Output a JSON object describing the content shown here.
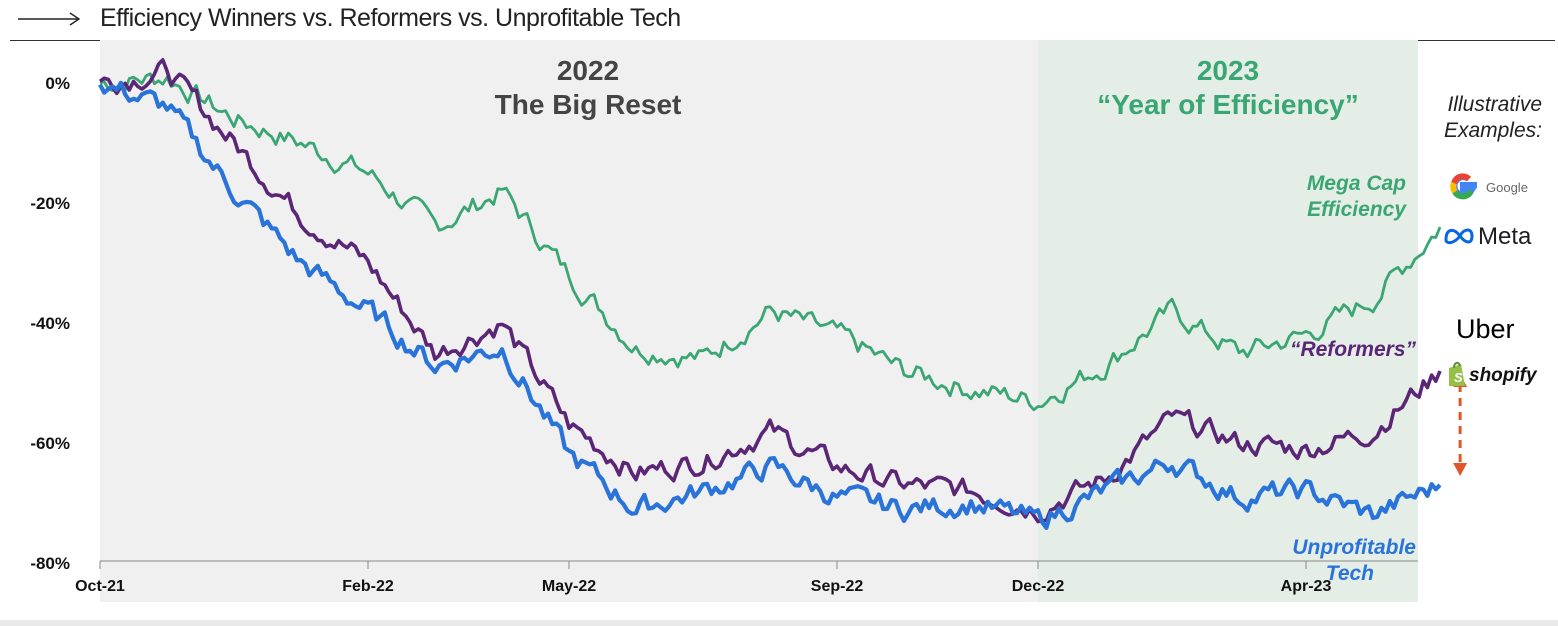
{
  "header": {
    "title": "Efficiency  Winners  vs. Reformers  vs. Unprofitable  Tech"
  },
  "examples": {
    "title_line1": "Illustrative",
    "title_line2": "Examples:",
    "logos": {
      "google": "Google",
      "meta": "Meta",
      "uber": "Uber",
      "shopify": "shopify"
    }
  },
  "chart_data": {
    "type": "line",
    "title": "Efficiency  Winners  vs. Reformers  vs. Unprofitable  Tech",
    "xlabel": "",
    "ylabel": "",
    "ylim": [
      -80,
      5
    ],
    "yticks": [
      0,
      -20,
      -40,
      -60,
      -80
    ],
    "ytick_labels": [
      "0%",
      "-20%",
      "-40%",
      "-60%",
      "-80%"
    ],
    "xticks": [
      {
        "label": "Oct-21",
        "index": 0
      },
      {
        "label": "Feb-22",
        "index": 4
      },
      {
        "label": "May-22",
        "index": 7
      },
      {
        "label": "Sep-22",
        "index": 11
      },
      {
        "label": "Dec-22",
        "index": 14
      },
      {
        "label": "Apr-23",
        "index": 18
      }
    ],
    "x": [
      "Oct-21",
      "Nov-21",
      "Dec-21",
      "Jan-22",
      "Feb-22",
      "Mar-22",
      "Apr-22",
      "May-22",
      "Jun-22",
      "Jul-22",
      "Aug-22",
      "Sep-22",
      "Oct-22",
      "Nov-22",
      "Dec-22",
      "Jan-23",
      "Feb-23",
      "Mar-23",
      "Apr-23",
      "May-23",
      "Jun-23"
    ],
    "periods": [
      {
        "year": "2022",
        "subtitle": "The Big Reset",
        "color": "#444444",
        "start_index": 0,
        "end_index": 14,
        "shade": "#f0f0f0"
      },
      {
        "year": "2023",
        "subtitle": "“Year of Efficiency”",
        "color": "#3aa673",
        "start_index": 14,
        "end_index": 20.7,
        "shade": "#e4eee7"
      }
    ],
    "series": [
      {
        "name": "Mega Cap Efficiency",
        "label_line1": "Mega Cap",
        "label_line2": "Efficiency",
        "color": "#3aa673",
        "values": [
          0,
          1,
          -6,
          -10,
          -15,
          -24,
          -18,
          -32,
          -44,
          -46,
          -38,
          -42,
          -48,
          -51,
          -53,
          -47,
          -38,
          -45,
          -42,
          -36,
          -24
        ]
      },
      {
        "name": "“Reformers”",
        "label_line1": "“Reformers”",
        "color": "#5b2676",
        "values": [
          0,
          2,
          -10,
          -22,
          -30,
          -45,
          -40,
          -57,
          -65,
          -63,
          -58,
          -64,
          -67,
          -68,
          -71,
          -66,
          -56,
          -60,
          -61,
          -58,
          -48
        ]
      },
      {
        "name": "Unprofitable Tech",
        "label_line1": "Unprofitable",
        "label_line2": "Tech",
        "color": "#2a74d9",
        "values": [
          0,
          -4,
          -18,
          -30,
          -38,
          -47,
          -44,
          -62,
          -71,
          -68,
          -64,
          -69,
          -71,
          -70,
          -73,
          -68,
          -63,
          -69,
          -68,
          -72,
          -67
        ]
      }
    ],
    "annotation": {
      "type": "double-arrow",
      "color": "#e0562a",
      "x_index": 20.3,
      "y_from": -47.5,
      "y_to": -66.5
    },
    "grid": false,
    "legend": "inline labels at right"
  }
}
